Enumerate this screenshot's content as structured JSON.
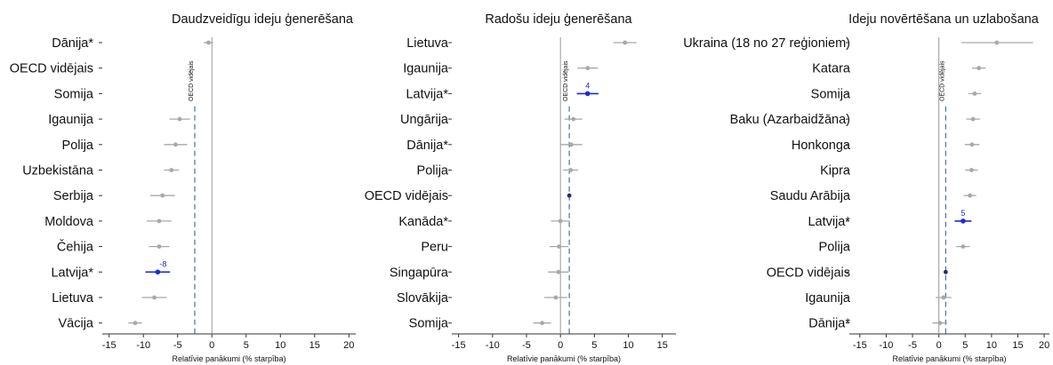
{
  "chart_data": [
    {
      "type": "forest",
      "title": "Daudzveidīgu ideju ģenerēšana",
      "xlabel": "Relatīvie panākumi (% starpība)",
      "xlim": [
        -16,
        21
      ],
      "xticks": [
        -15,
        -10,
        -5,
        0,
        5,
        10,
        15,
        20
      ],
      "reference_line_label": "OECD vidējais",
      "reference_value": -2.5,
      "categories": [
        "Dānija*",
        "OECD vidējais",
        "Somija",
        "Igaunija",
        "Polija",
        "Uzbekistāna",
        "Serbija",
        "Moldova",
        "Čehija",
        "Latvija*",
        "Lietuva",
        "Vācija"
      ],
      "values": [
        -0.5,
        null,
        null,
        -4.7,
        -5.3,
        -5.9,
        -7.2,
        -7.7,
        -7.7,
        -7.9,
        -8.4,
        -11.2
      ],
      "ci_low": [
        -1.2,
        null,
        null,
        -6.2,
        -7.0,
        -7.0,
        -9.0,
        -9.5,
        -9.2,
        -9.7,
        -10.2,
        -12.2
      ],
      "ci_high": [
        0.2,
        null,
        null,
        -3.2,
        -3.6,
        -4.8,
        -5.4,
        -5.9,
        -6.2,
        -6.1,
        -6.6,
        -10.2
      ],
      "highlight": "Latvija*",
      "highlight_label": "-8"
    },
    {
      "type": "forest",
      "title": "Radošu ideju ģenerēšana",
      "xlabel": "Relatīvie panākumi (% starpība)",
      "xlim": [
        -16,
        17
      ],
      "xticks": [
        -15,
        -10,
        -5,
        0,
        5,
        10,
        15
      ],
      "reference_line_label": "OECD vidējais",
      "reference_value": 1.3,
      "categories": [
        "Lietuva",
        "Igaunija",
        "Latvija*",
        "Ungārija",
        "Dānija*",
        "Polija",
        "OECD vidējais",
        "Kanāda*",
        "Peru",
        "Singapūra",
        "Slovākija",
        "Somija"
      ],
      "values": [
        9.5,
        4.0,
        4.0,
        1.9,
        1.6,
        1.5,
        1.3,
        0.0,
        -0.2,
        -0.3,
        -0.7,
        -2.7
      ],
      "ci_low": [
        7.8,
        2.5,
        2.4,
        0.6,
        0.0,
        0.4,
        null,
        -1.4,
        -1.6,
        -1.8,
        -2.4,
        -4.0
      ],
      "ci_high": [
        11.2,
        5.5,
        5.6,
        3.2,
        3.2,
        2.6,
        null,
        1.4,
        1.2,
        1.2,
        1.0,
        -1.4
      ],
      "highlight": "Latvija*",
      "highlight_label": "4"
    },
    {
      "type": "forest",
      "title": "Ideju novērtēšana un uzlabošana",
      "xlabel": "Relatīvie panākumi (% starpība)",
      "xlim": [
        -17,
        21
      ],
      "xticks": [
        -15,
        -10,
        -5,
        0,
        5,
        10,
        15,
        20
      ],
      "reference_line_label": "OECD vidējais",
      "reference_value": 1.3,
      "categories": [
        "Ukraina (18 no 27 reģioniem)",
        "Katara",
        "Somija",
        "Baku (Azarbaidžāna)",
        "Honkonga",
        "Kipra",
        "Saudu Arābija",
        "Latvija*",
        "Polija",
        "OECD vidējais",
        "Igaunija",
        "Dānija*"
      ],
      "values": [
        11.0,
        7.6,
        6.8,
        6.5,
        6.3,
        6.2,
        5.9,
        4.6,
        4.6,
        1.3,
        0.9,
        0.2
      ],
      "ci_low": [
        4.3,
        6.3,
        5.6,
        5.2,
        4.9,
        5.0,
        4.7,
        3.0,
        3.3,
        null,
        -0.6,
        -1.2
      ],
      "ci_high": [
        17.9,
        8.9,
        8.0,
        7.8,
        7.7,
        7.4,
        7.1,
        6.2,
        5.9,
        null,
        2.4,
        1.6
      ],
      "highlight": "Latvija*",
      "highlight_label": "5"
    }
  ]
}
